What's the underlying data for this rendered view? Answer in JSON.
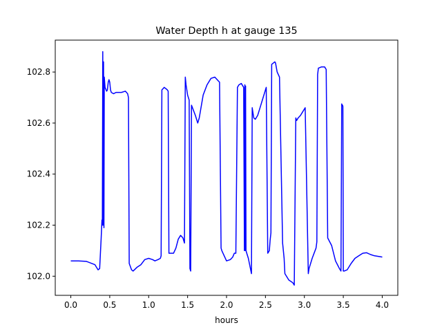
{
  "chart_data": {
    "type": "line",
    "title": "Water Depth h at gauge 135",
    "xlabel": "hours",
    "ylabel": "",
    "xlim": [
      -0.2,
      4.2
    ],
    "ylim": [
      101.925,
      102.925
    ],
    "xticks": [
      0.0,
      0.5,
      1.0,
      1.5,
      2.0,
      2.5,
      3.0,
      3.5,
      4.0
    ],
    "xtick_labels": [
      "0.0",
      "0.5",
      "1.0",
      "1.5",
      "2.0",
      "2.5",
      "3.0",
      "3.5",
      "4.0"
    ],
    "yticks": [
      102.0,
      102.2,
      102.4,
      102.6,
      102.8
    ],
    "ytick_labels": [
      "102.0",
      "102.2",
      "102.4",
      "102.6",
      "102.8"
    ],
    "grid": false,
    "legend": "none",
    "line_color": "#0000ff",
    "series": [
      {
        "x": [
          0.0,
          0.1,
          0.2,
          0.27,
          0.31,
          0.33,
          0.35,
          0.37,
          0.39,
          0.4,
          0.405,
          0.41,
          0.415,
          0.42,
          0.425,
          0.43,
          0.44,
          0.46,
          0.47,
          0.48,
          0.49,
          0.5,
          0.51,
          0.52,
          0.55,
          0.58,
          0.6,
          0.65,
          0.7,
          0.73,
          0.74,
          0.75,
          0.78,
          0.8,
          0.85,
          0.9,
          0.95,
          1.0,
          1.05,
          1.08,
          1.12,
          1.15,
          1.16,
          1.17,
          1.2,
          1.22,
          1.24,
          1.25,
          1.26,
          1.28,
          1.32,
          1.35,
          1.38,
          1.41,
          1.44,
          1.46,
          1.47,
          1.48,
          1.5,
          1.52,
          1.53,
          1.54,
          1.55,
          1.6,
          1.63,
          1.65,
          1.7,
          1.75,
          1.8,
          1.85,
          1.88,
          1.91,
          1.93,
          1.94,
          1.97,
          2.0,
          2.05,
          2.08,
          2.1,
          2.12,
          2.14,
          2.16,
          2.19,
          2.22,
          2.23,
          2.235,
          2.24,
          2.245,
          2.25,
          2.26,
          2.28,
          2.32,
          2.33,
          2.34,
          2.35,
          2.37,
          2.4,
          2.43,
          2.47,
          2.51,
          2.53,
          2.55,
          2.56,
          2.57,
          2.58,
          2.62,
          2.63,
          2.65,
          2.68,
          2.72,
          2.74,
          2.75,
          2.8,
          2.85,
          2.87,
          2.89,
          2.9,
          2.92,
          2.95,
          2.98,
          3.01,
          3.05,
          3.06,
          3.1,
          3.15,
          3.16,
          3.17,
          3.18,
          3.22,
          3.26,
          3.28,
          3.3,
          3.35,
          3.4,
          3.45,
          3.47,
          3.48,
          3.485,
          3.49,
          3.495,
          3.5,
          3.51,
          3.55,
          3.6,
          3.65,
          3.7,
          3.75,
          3.8,
          3.85,
          3.9,
          4.0
        ],
        "values": [
          102.06,
          102.06,
          102.058,
          102.05,
          102.045,
          102.035,
          102.025,
          102.03,
          102.15,
          102.22,
          102.2,
          102.88,
          102.2,
          102.84,
          102.19,
          102.78,
          102.74,
          102.725,
          102.73,
          102.76,
          102.77,
          102.76,
          102.73,
          102.72,
          102.715,
          102.72,
          102.72,
          102.72,
          102.725,
          102.715,
          102.7,
          102.05,
          102.025,
          102.02,
          102.035,
          102.045,
          102.065,
          102.07,
          102.065,
          102.06,
          102.065,
          102.07,
          102.08,
          102.73,
          102.74,
          102.735,
          102.73,
          102.725,
          102.09,
          102.09,
          102.09,
          102.11,
          102.145,
          102.16,
          102.15,
          102.13,
          102.78,
          102.75,
          102.71,
          102.69,
          102.03,
          102.02,
          102.67,
          102.63,
          102.6,
          102.62,
          102.71,
          102.75,
          102.775,
          102.78,
          102.77,
          102.76,
          102.11,
          102.1,
          102.08,
          102.06,
          102.065,
          102.075,
          102.09,
          102.09,
          102.74,
          102.75,
          102.755,
          102.74,
          102.1,
          102.75,
          102.1,
          102.745,
          102.1,
          102.09,
          102.07,
          102.01,
          102.66,
          102.64,
          102.62,
          102.615,
          102.63,
          102.66,
          102.7,
          102.74,
          102.09,
          102.1,
          102.14,
          102.17,
          102.83,
          102.84,
          102.835,
          102.8,
          102.78,
          102.13,
          102.07,
          102.01,
          101.985,
          101.975,
          101.965,
          102.62,
          102.61,
          102.62,
          102.63,
          102.645,
          102.66,
          102.01,
          102.03,
          102.07,
          102.11,
          102.135,
          102.79,
          102.815,
          102.82,
          102.82,
          102.81,
          102.15,
          102.12,
          102.06,
          102.03,
          102.02,
          102.675,
          102.67,
          102.67,
          102.665,
          102.02,
          102.02,
          102.025,
          102.05,
          102.07,
          102.08,
          102.09,
          102.092,
          102.085,
          102.08,
          102.075
        ]
      }
    ]
  }
}
